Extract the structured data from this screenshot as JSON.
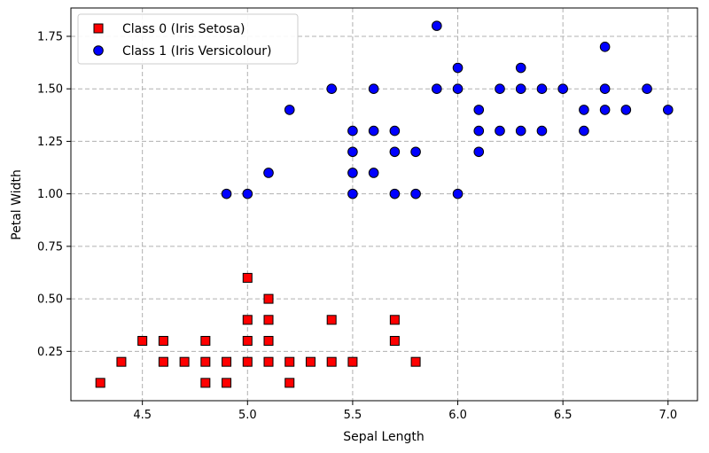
{
  "chart_data": {
    "type": "scatter",
    "title": "",
    "xlabel": "Sepal Length",
    "ylabel": "Petal Width",
    "xlim": [
      4.16,
      7.14
    ],
    "ylim": [
      0.015,
      1.885
    ],
    "xticks": [
      "4.5",
      "5.0",
      "5.5",
      "6.0",
      "6.5",
      "7.0"
    ],
    "yticks": [
      "0.25",
      "0.50",
      "0.75",
      "1.00",
      "1.25",
      "1.50",
      "1.75"
    ],
    "grid": true,
    "legend": "top-left",
    "series": [
      {
        "name": "Class 0 (Iris Setosa)",
        "marker": "square",
        "color": "#ff0000",
        "edge_color": "#000000",
        "points": [
          [
            4.3,
            0.1
          ],
          [
            4.4,
            0.2
          ],
          [
            4.5,
            0.3
          ],
          [
            4.6,
            0.2
          ],
          [
            4.6,
            0.3
          ],
          [
            4.7,
            0.2
          ],
          [
            4.8,
            0.1
          ],
          [
            4.8,
            0.2
          ],
          [
            4.8,
            0.3
          ],
          [
            4.9,
            0.1
          ],
          [
            4.9,
            0.2
          ],
          [
            5.0,
            0.2
          ],
          [
            5.0,
            0.3
          ],
          [
            5.0,
            0.4
          ],
          [
            5.0,
            0.6
          ],
          [
            5.1,
            0.2
          ],
          [
            5.1,
            0.3
          ],
          [
            5.1,
            0.4
          ],
          [
            5.1,
            0.5
          ],
          [
            5.2,
            0.1
          ],
          [
            5.2,
            0.2
          ],
          [
            5.3,
            0.2
          ],
          [
            5.4,
            0.2
          ],
          [
            5.4,
            0.4
          ],
          [
            5.5,
            0.2
          ],
          [
            5.7,
            0.3
          ],
          [
            5.7,
            0.4
          ],
          [
            5.8,
            0.2
          ]
        ]
      },
      {
        "name": "Class 1 (Iris Versicolour)",
        "marker": "circle",
        "color": "#0000ff",
        "edge_color": "#000000",
        "points": [
          [
            4.9,
            1.0
          ],
          [
            5.0,
            1.0
          ],
          [
            5.1,
            1.1
          ],
          [
            5.2,
            1.4
          ],
          [
            5.4,
            1.5
          ],
          [
            5.5,
            1.0
          ],
          [
            5.5,
            1.1
          ],
          [
            5.5,
            1.2
          ],
          [
            5.5,
            1.3
          ],
          [
            5.6,
            1.1
          ],
          [
            5.6,
            1.3
          ],
          [
            5.6,
            1.5
          ],
          [
            5.7,
            1.0
          ],
          [
            5.7,
            1.2
          ],
          [
            5.7,
            1.3
          ],
          [
            5.8,
            1.0
          ],
          [
            5.8,
            1.2
          ],
          [
            5.9,
            1.5
          ],
          [
            5.9,
            1.8
          ],
          [
            6.0,
            1.0
          ],
          [
            6.0,
            1.5
          ],
          [
            6.0,
            1.6
          ],
          [
            6.1,
            1.2
          ],
          [
            6.1,
            1.3
          ],
          [
            6.1,
            1.4
          ],
          [
            6.2,
            1.3
          ],
          [
            6.2,
            1.5
          ],
          [
            6.3,
            1.3
          ],
          [
            6.3,
            1.5
          ],
          [
            6.3,
            1.6
          ],
          [
            6.4,
            1.3
          ],
          [
            6.4,
            1.5
          ],
          [
            6.5,
            1.5
          ],
          [
            6.6,
            1.3
          ],
          [
            6.6,
            1.4
          ],
          [
            6.7,
            1.4
          ],
          [
            6.7,
            1.5
          ],
          [
            6.7,
            1.7
          ],
          [
            6.8,
            1.4
          ],
          [
            6.9,
            1.5
          ],
          [
            7.0,
            1.4
          ]
        ]
      }
    ]
  }
}
